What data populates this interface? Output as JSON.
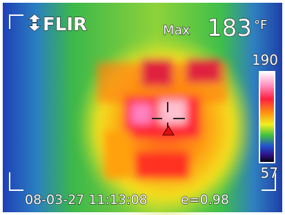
{
  "logo": "FLIR",
  "measurement": {
    "label": "Max",
    "value": 183,
    "unit": "°F"
  },
  "scale": {
    "max": 190,
    "min": 57
  },
  "footer": {
    "timestamp": "08-03-27 11:13:08",
    "emissivity": "e=0.98"
  }
}
